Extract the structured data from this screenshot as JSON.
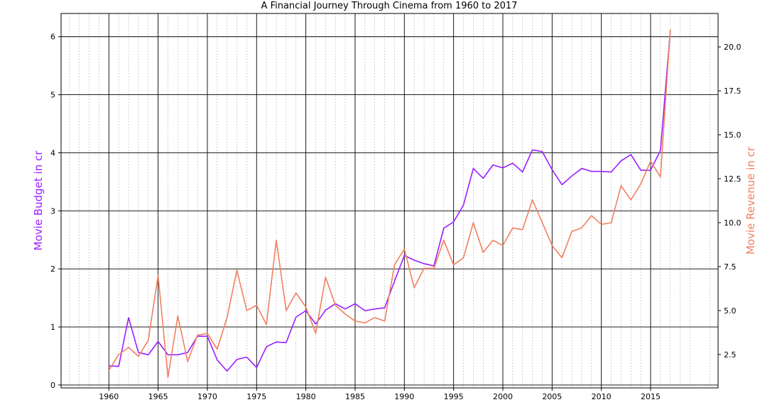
{
  "chart_data": {
    "type": "line",
    "title": "A Financial Journey Through Cinema from 1960 to 2017",
    "xlabel": "",
    "ylabel": "Movie Budget in cr",
    "y2label": "Movie Revenue in cr",
    "xlim": [
      1955.15,
      2021.85
    ],
    "ylim": [
      -0.05,
      6.4
    ],
    "y2lim": [
      0.6,
      21.9
    ],
    "x_ticks": [
      1960,
      1965,
      1970,
      1975,
      1980,
      1985,
      1990,
      1995,
      2000,
      2005,
      2010,
      2015
    ],
    "y_ticks": [
      0,
      1,
      2,
      3,
      4,
      5,
      6
    ],
    "y2_ticks": [
      "2.5",
      "5.0",
      "7.5",
      "10.0",
      "12.5",
      "15.0",
      "17.5",
      "20.0"
    ],
    "y2_tick_values": [
      2.5,
      5.0,
      7.5,
      10.0,
      12.5,
      15.0,
      17.5,
      20.0
    ],
    "grid": {
      "major": true,
      "minor": true
    },
    "years": [
      1960,
      1961,
      1962,
      1963,
      1964,
      1965,
      1966,
      1967,
      1968,
      1969,
      1970,
      1971,
      1972,
      1973,
      1974,
      1975,
      1976,
      1977,
      1978,
      1979,
      1980,
      1981,
      1982,
      1983,
      1984,
      1985,
      1986,
      1987,
      1988,
      1989,
      1990,
      1991,
      1992,
      1993,
      1994,
      1995,
      1996,
      1997,
      1998,
      1999,
      2000,
      2001,
      2002,
      2003,
      2004,
      2005,
      2006,
      2007,
      2008,
      2009,
      2010,
      2011,
      2012,
      2013,
      2014,
      2015,
      2016,
      2017
    ],
    "series": [
      {
        "name": "Movie Budget in cr",
        "axis": "left",
        "color": "#9b1fff",
        "values": [
          0.33,
          0.32,
          1.16,
          0.56,
          0.52,
          0.75,
          0.52,
          0.52,
          0.56,
          0.84,
          0.84,
          0.43,
          0.24,
          0.44,
          0.48,
          0.3,
          0.66,
          0.74,
          0.73,
          1.17,
          1.28,
          1.05,
          1.29,
          1.4,
          1.31,
          1.4,
          1.28,
          1.31,
          1.33,
          1.79,
          2.23,
          2.15,
          2.09,
          2.05,
          2.7,
          2.81,
          3.1,
          3.73,
          3.56,
          3.79,
          3.74,
          3.82,
          3.67,
          4.05,
          4.02,
          3.71,
          3.45,
          3.6,
          3.73,
          3.68,
          3.68,
          3.67,
          3.86,
          3.97,
          3.7,
          3.7,
          4.04,
          6.1
        ]
      },
      {
        "name": "Movie Revenue in cr",
        "axis": "right",
        "color": "#f08060",
        "values": [
          1.6,
          2.5,
          2.9,
          2.4,
          3.3,
          7.0,
          1.2,
          4.7,
          2.1,
          3.6,
          3.7,
          2.8,
          4.6,
          7.3,
          5.0,
          5.3,
          4.2,
          9.0,
          5.0,
          6.0,
          5.2,
          3.7,
          6.9,
          5.3,
          4.8,
          4.4,
          4.3,
          4.6,
          4.4,
          7.6,
          8.5,
          6.3,
          7.4,
          7.4,
          9.0,
          7.6,
          8.0,
          10.0,
          8.3,
          9.0,
          8.7,
          9.7,
          9.6,
          11.3,
          10.0,
          8.7,
          8.0,
          9.5,
          9.7,
          10.4,
          9.9,
          10.0,
          12.1,
          11.3,
          12.2,
          13.5,
          12.6,
          21.0
        ]
      }
    ]
  }
}
